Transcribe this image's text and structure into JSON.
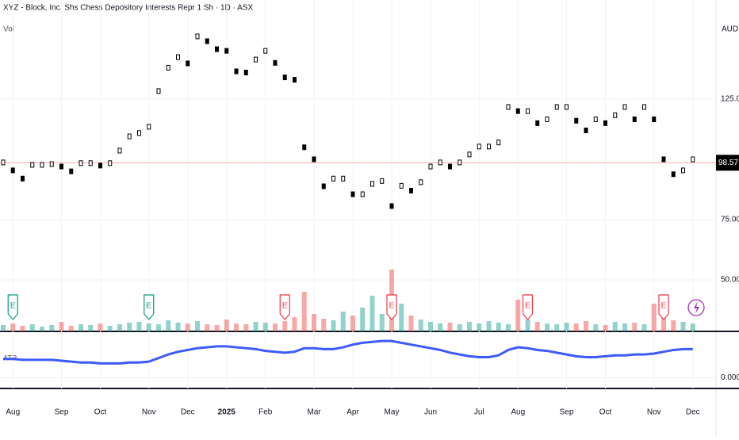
{
  "chart_data": {
    "type": "candlestick",
    "title": "XYZ - Block, Inc. Shs Chess Depository Interests Repr 1 Sh · 1D · ASX",
    "currency": "AUD",
    "volume_label": "Vol",
    "categories": [
      null,
      "Aug",
      null,
      null,
      null,
      null,
      "Sep",
      null,
      null,
      null,
      "Oct",
      null,
      null,
      null,
      null,
      "Nov",
      null,
      null,
      null,
      "Dec",
      null,
      null,
      null,
      "2025",
      null,
      null,
      null,
      "Feb",
      null,
      null,
      null,
      null,
      "Mar",
      null,
      null,
      null,
      "Apr",
      null,
      null,
      null,
      "May",
      null,
      null,
      null,
      "Jun",
      null,
      null,
      null,
      null,
      "Jul",
      null,
      null,
      null,
      "Aug",
      null,
      null,
      null,
      null,
      "Sep",
      null,
      null,
      null,
      "Oct",
      null,
      null,
      null,
      null,
      "Nov",
      null,
      null,
      null,
      "Dec"
    ],
    "values": [
      98.7,
      95.4,
      92,
      97.7,
      97.7,
      98,
      97,
      95,
      98.4,
      98.4,
      97.4,
      98.4,
      103.6,
      109.5,
      110.9,
      113.5,
      128.3,
      138,
      142.4,
      139.8,
      151,
      149,
      145.7,
      145,
      136.5,
      136,
      141.4,
      145,
      140,
      134,
      133,
      105,
      100,
      88.8,
      92,
      92,
      85.5,
      85.5,
      89.8,
      91,
      80.6,
      89,
      87,
      90.5,
      97,
      98.7,
      97,
      98.7,
      102,
      105.3,
      105.3,
      107,
      121.7,
      120,
      120,
      115,
      116.6,
      121.7,
      121.7,
      116,
      112,
      116.6,
      115,
      118.3,
      121.7,
      116.6,
      121.7,
      116.6,
      100,
      93.8,
      95.4,
      100
    ],
    "ylim": [
      28.6,
      166.1
    ],
    "yticks": [
      {
        "value": 50,
        "label": "50.00"
      },
      {
        "value": 75,
        "label": "75.00"
      },
      {
        "value": 125,
        "label": "125.00"
      }
    ],
    "last_price": 98.57,
    "volume": [
      8,
      10,
      7,
      9,
      6,
      8,
      12,
      7,
      9,
      8,
      10,
      7,
      9,
      11,
      12,
      10,
      9,
      14,
      11,
      10,
      13,
      9,
      8,
      15,
      10,
      9,
      12,
      11,
      10,
      13,
      18,
      50,
      22,
      16,
      14,
      25,
      20,
      30,
      45,
      22,
      78,
      35,
      20,
      15,
      12,
      10,
      11,
      9,
      12,
      10,
      13,
      11,
      9,
      40,
      15,
      12,
      10,
      9,
      11,
      10,
      13,
      9,
      8,
      12,
      10,
      11,
      9,
      35,
      18,
      14,
      12,
      10
    ],
    "volume_ylim": [
      0,
      100
    ],
    "up_color": "#26a69a",
    "down_color": "#ef5350",
    "earnings": [
      null,
      {
        "label": "E",
        "color": "#089981"
      },
      null,
      null,
      null,
      null,
      null,
      null,
      null,
      null,
      null,
      null,
      null,
      null,
      null,
      {
        "label": "E",
        "color": "#089981"
      },
      null,
      null,
      null,
      null,
      null,
      null,
      null,
      null,
      null,
      null,
      null,
      null,
      null,
      {
        "label": "E",
        "color": "#f23645"
      },
      null,
      null,
      null,
      null,
      null,
      null,
      null,
      null,
      null,
      null,
      {
        "label": "E",
        "color": "#f23645"
      },
      null,
      null,
      null,
      null,
      null,
      null,
      null,
      null,
      null,
      null,
      null,
      null,
      null,
      {
        "label": "E",
        "color": "#f23645"
      },
      null,
      null,
      null,
      null,
      null,
      null,
      null,
      null,
      null,
      null,
      null,
      null,
      null,
      {
        "label": "E",
        "color": "#f23645"
      },
      null,
      null,
      null
    ],
    "atr": {
      "label": "ATR",
      "color": "#3d5afe",
      "ylim": [
        -1.2,
        5
      ],
      "yticks": [
        {
          "value": 0,
          "label": "0.000"
        }
      ],
      "values": [
        2.1,
        2.1,
        2,
        2,
        2,
        2,
        1.9,
        1.8,
        1.7,
        1.7,
        1.6,
        1.6,
        1.6,
        1.7,
        1.7,
        1.8,
        2.2,
        2.6,
        2.9,
        3.1,
        3.3,
        3.4,
        3.5,
        3.5,
        3.4,
        3.3,
        3.2,
        3,
        2.9,
        2.8,
        2.9,
        3.3,
        3.3,
        3.2,
        3.2,
        3.4,
        3.7,
        3.9,
        4,
        4.1,
        4.1,
        3.9,
        3.7,
        3.5,
        3.3,
        3.1,
        2.8,
        2.6,
        2.4,
        2.3,
        2.3,
        2.5,
        3.1,
        3.4,
        3.3,
        3.1,
        3,
        2.8,
        2.6,
        2.4,
        2.3,
        2.3,
        2.4,
        2.5,
        2.5,
        2.6,
        2.6,
        2.7,
        2.9,
        3.1,
        3.2,
        3.2
      ]
    }
  }
}
